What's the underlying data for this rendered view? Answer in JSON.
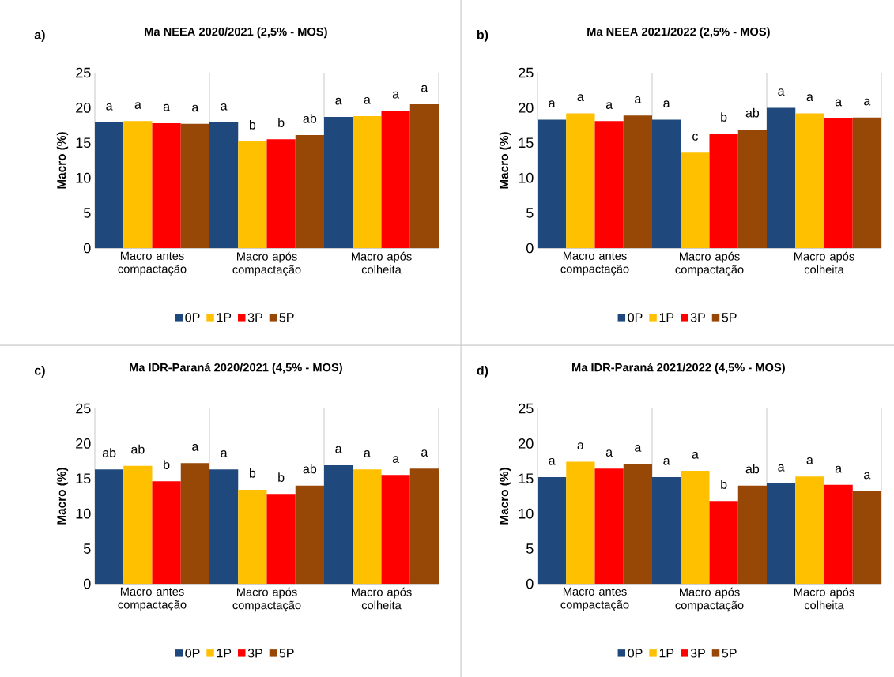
{
  "chart_data": [
    {
      "type": "bar",
      "title": "Ma NEEA 2020/2021 (2,5% - MOS)",
      "annotations": [
        "a)"
      ],
      "ylabel": "Macro (%)",
      "categories": [
        "Macro antes compactação",
        "Macro após compactação",
        "Macro após colheita"
      ],
      "ylim": [
        0,
        25
      ],
      "yticks": [
        0,
        5,
        10,
        15,
        20,
        25
      ],
      "legend": "bottom",
      "series": [
        {
          "name": "0P",
          "color": "#1f497d",
          "values": [
            17.9,
            17.9,
            18.7
          ],
          "value_labels": [
            "a",
            "a",
            "a"
          ]
        },
        {
          "name": "1P",
          "color": "#ffc000",
          "values": [
            18.1,
            15.2,
            18.8
          ],
          "value_labels": [
            "a",
            "b",
            "a"
          ]
        },
        {
          "name": "3P",
          "color": "#ff0000",
          "values": [
            17.8,
            15.5,
            19.6
          ],
          "value_labels": [
            "a",
            "b",
            "a"
          ]
        },
        {
          "name": "5P",
          "color": "#974706",
          "values": [
            17.7,
            16.1,
            20.5
          ],
          "value_labels": [
            "a",
            "ab",
            "a"
          ]
        }
      ]
    },
    {
      "type": "bar",
      "title": "Ma NEEA 2021/2022 (2,5% - MOS)",
      "annotations": [
        "b)"
      ],
      "ylabel": "Macro (%)",
      "categories": [
        "Macro antes compactação",
        "Macro após compactação",
        "Macro após colheita"
      ],
      "ylim": [
        0,
        25
      ],
      "yticks": [
        0,
        5,
        10,
        15,
        20,
        25
      ],
      "legend": "bottom",
      "series": [
        {
          "name": "0P",
          "color": "#1f497d",
          "values": [
            18.3,
            18.3,
            20.0
          ],
          "value_labels": [
            "a",
            "a",
            "a"
          ]
        },
        {
          "name": "1P",
          "color": "#ffc000",
          "values": [
            19.2,
            13.6,
            19.2
          ],
          "value_labels": [
            "a",
            "c",
            "a"
          ]
        },
        {
          "name": "3P",
          "color": "#ff0000",
          "values": [
            18.1,
            16.3,
            18.5
          ],
          "value_labels": [
            "a",
            "b",
            "a"
          ]
        },
        {
          "name": "5P",
          "color": "#974706",
          "values": [
            18.9,
            16.9,
            18.6
          ],
          "value_labels": [
            "a",
            "ab",
            "a"
          ]
        }
      ]
    },
    {
      "type": "bar",
      "title": "Ma IDR-Paraná 2020/2021 (4,5% - MOS)",
      "annotations": [
        "c)"
      ],
      "ylabel": "Macro (%)",
      "categories": [
        "Macro antes compactação",
        "Macro após compactação",
        "Macro após colheita"
      ],
      "ylim": [
        0,
        25
      ],
      "yticks": [
        0,
        5,
        10,
        15,
        20,
        25
      ],
      "legend": "bottom",
      "series": [
        {
          "name": "0P",
          "color": "#1f497d",
          "values": [
            16.3,
            16.3,
            16.9
          ],
          "value_labels": [
            "ab",
            "a",
            "a"
          ]
        },
        {
          "name": "1P",
          "color": "#ffc000",
          "values": [
            16.8,
            13.4,
            16.3
          ],
          "value_labels": [
            "ab",
            "b",
            "a"
          ]
        },
        {
          "name": "3P",
          "color": "#ff0000",
          "values": [
            14.6,
            12.8,
            15.5
          ],
          "value_labels": [
            "b",
            "b",
            "a"
          ]
        },
        {
          "name": "5P",
          "color": "#974706",
          "values": [
            17.2,
            14.0,
            16.4
          ],
          "value_labels": [
            "a",
            "ab",
            "a"
          ]
        }
      ]
    },
    {
      "type": "bar",
      "title": "Ma IDR-Paraná 2021/2022 (4,5% - MOS)",
      "annotations": [
        "d)"
      ],
      "ylabel": "Macro (%)",
      "categories": [
        "Macro antes compactação",
        "Macro após compactação",
        "Macro após colheita"
      ],
      "ylim": [
        0,
        25
      ],
      "yticks": [
        0,
        5,
        10,
        15,
        20,
        25
      ],
      "legend": "bottom",
      "series": [
        {
          "name": "0P",
          "color": "#1f497d",
          "values": [
            15.2,
            15.2,
            14.3
          ],
          "value_labels": [
            "a",
            "a",
            "a"
          ]
        },
        {
          "name": "1P",
          "color": "#ffc000",
          "values": [
            17.4,
            16.1,
            15.3
          ],
          "value_labels": [
            "a",
            "a",
            "a"
          ]
        },
        {
          "name": "3P",
          "color": "#ff0000",
          "values": [
            16.4,
            11.8,
            14.1
          ],
          "value_labels": [
            "a",
            "b",
            "a"
          ]
        },
        {
          "name": "5P",
          "color": "#974706",
          "values": [
            17.1,
            14.0,
            13.2
          ],
          "value_labels": [
            "a",
            "ab",
            "a"
          ]
        }
      ]
    }
  ]
}
